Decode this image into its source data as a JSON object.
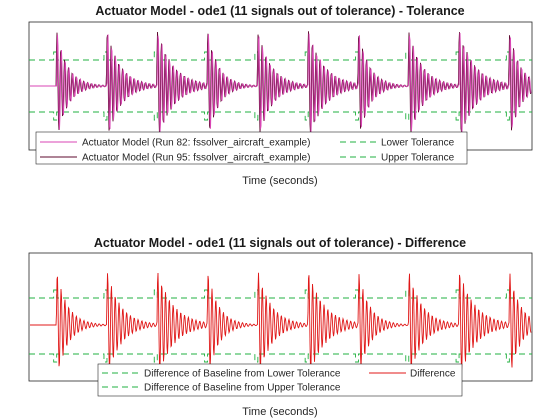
{
  "chart_data": [
    {
      "type": "line",
      "title": "Actuator Model - ode1 (11 signals out of tolerance) - Tolerance",
      "xlabel": "Time (seconds)",
      "ylabel": "",
      "grid": false,
      "legend_placement": "bottom",
      "burst_count": 10,
      "series": [
        {
          "name": "Actuator Model (Run 82: fssolver_aircraft_example)",
          "color": "#d946b4",
          "style": "solid"
        },
        {
          "name": "Actuator Model (Run 95: fssolver_aircraft_example)",
          "color": "#5c0a2e",
          "style": "solid"
        },
        {
          "name": "Lower Tolerance",
          "color": "#22b040",
          "style": "dashed"
        },
        {
          "name": "Upper Tolerance",
          "color": "#22b040",
          "style": "dashed"
        }
      ]
    },
    {
      "type": "line",
      "title": "Actuator Model - ode1 (11 signals out of tolerance) - Difference",
      "xlabel": "Time (seconds)",
      "ylabel": "",
      "grid": false,
      "legend_placement": "bottom",
      "burst_count": 10,
      "series": [
        {
          "name": "Difference of Baseline from Lower Tolerance",
          "color": "#22b040",
          "style": "dashed"
        },
        {
          "name": "Difference",
          "color": "#e01818",
          "style": "solid"
        },
        {
          "name": "Difference of Baseline from Upper Tolerance",
          "color": "#22b040",
          "style": "dashed"
        }
      ]
    }
  ]
}
